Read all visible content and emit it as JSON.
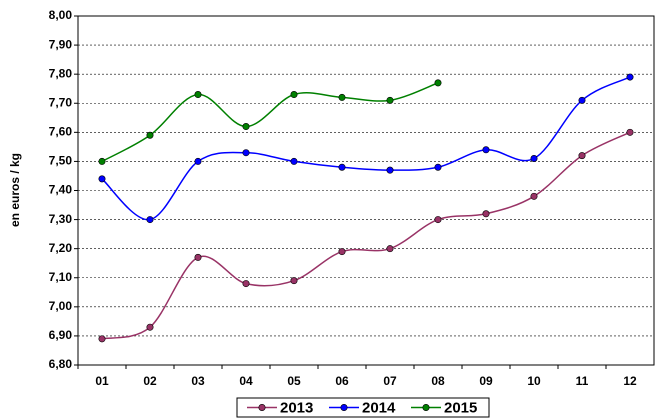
{
  "chart_data": {
    "type": "line",
    "y_label": "en euros / kg",
    "categories": [
      "01",
      "02",
      "03",
      "04",
      "05",
      "06",
      "07",
      "08",
      "09",
      "10",
      "11",
      "12"
    ],
    "series": [
      {
        "name": "2013",
        "color": "#993366",
        "values": [
          6.89,
          6.93,
          7.17,
          7.08,
          7.09,
          7.19,
          7.2,
          7.3,
          7.32,
          7.38,
          7.52,
          7.6
        ]
      },
      {
        "name": "2014",
        "color": "#0000ff",
        "values": [
          7.44,
          7.3,
          7.5,
          7.53,
          7.5,
          7.48,
          7.47,
          7.48,
          7.54,
          7.51,
          7.71,
          7.79
        ]
      },
      {
        "name": "2015",
        "color": "#008000",
        "values": [
          7.5,
          7.59,
          7.73,
          7.62,
          7.73,
          7.72,
          7.71,
          7.77,
          null,
          null,
          null,
          null
        ]
      }
    ],
    "ylim": [
      6.8,
      8.0
    ],
    "yticks": [
      {
        "value": 6.8,
        "label": "6,80"
      },
      {
        "value": 6.9,
        "label": "6,90"
      },
      {
        "value": 7.0,
        "label": "7,00"
      },
      {
        "value": 7.1,
        "label": "7,10"
      },
      {
        "value": 7.2,
        "label": "7,20"
      },
      {
        "value": 7.3,
        "label": "7,30"
      },
      {
        "value": 7.4,
        "label": "7,40"
      },
      {
        "value": 7.5,
        "label": "7,50"
      },
      {
        "value": 7.6,
        "label": "7,60"
      },
      {
        "value": 7.7,
        "label": "7,70"
      },
      {
        "value": 7.8,
        "label": "7,80"
      },
      {
        "value": 7.9,
        "label": "7,90"
      },
      {
        "value": 8.0,
        "label": "8,00"
      }
    ],
    "grid": true,
    "legend": "bottom"
  }
}
